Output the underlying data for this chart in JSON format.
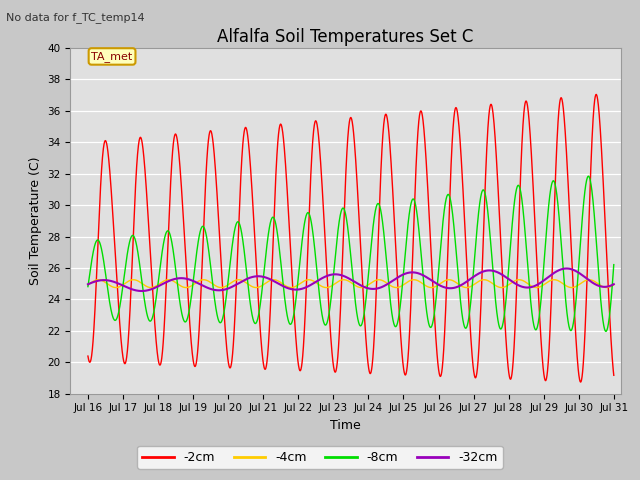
{
  "title": "Alfalfa Soil Temperatures Set C",
  "xlabel": "Time",
  "ylabel": "Soil Temperature (C)",
  "note": "No data for f_TC_temp14",
  "annotation": "TA_met",
  "ylim": [
    18,
    40
  ],
  "xlim_days": [
    15.5,
    31.2
  ],
  "yticks": [
    18,
    20,
    22,
    24,
    26,
    28,
    30,
    32,
    34,
    36,
    38,
    40
  ],
  "xtick_labels": [
    "Jul 16",
    "Jul 17",
    "Jul 18",
    "Jul 19",
    "Jul 20",
    "Jul 21",
    "Jul 22",
    "Jul 23",
    "Jul 24",
    "Jul 25",
    "Jul 26",
    "Jul 27",
    "Jul 28",
    "Jul 29",
    "Jul 30",
    "Jul 31"
  ],
  "xtick_positions": [
    16,
    17,
    18,
    19,
    20,
    21,
    22,
    23,
    24,
    25,
    26,
    27,
    28,
    29,
    30,
    31
  ],
  "colors": {
    "2cm": "#ff0000",
    "4cm": "#ffcc00",
    "8cm": "#00dd00",
    "32cm": "#9900bb"
  },
  "legend_labels": [
    "-2cm",
    "-4cm",
    "-8cm",
    "-32cm"
  ],
  "fig_facecolor": "#c8c8c8",
  "plot_facecolor": "#e0e0e0"
}
